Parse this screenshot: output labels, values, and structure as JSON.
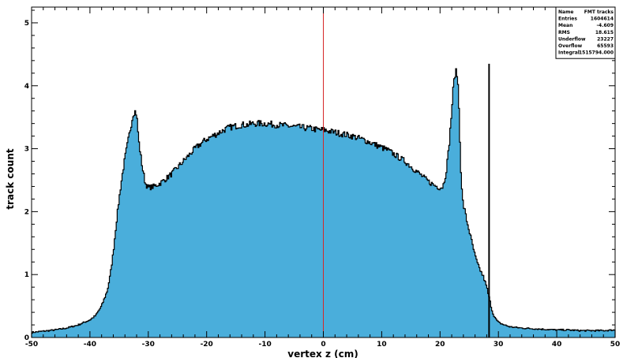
{
  "chart_data": {
    "type": "area",
    "xlabel": "vertex z (cm)",
    "ylabel": "track count",
    "xlim": [
      -50,
      50
    ],
    "ylim": [
      0,
      5.25
    ],
    "xticks": [
      "-50",
      "-40",
      "-30",
      "-20",
      "-10",
      "0",
      "10",
      "20",
      "30",
      "40",
      "50"
    ],
    "yticks": [
      "0",
      "1",
      "2",
      "3",
      "4",
      "5"
    ],
    "grid": false,
    "legend": "stats box top-right",
    "fill_color": "#4aaedb",
    "line_color": "#000000",
    "marker_color": "#d62728",
    "marker_x": 0,
    "spike": {
      "x": 28.4,
      "y": 4.35
    },
    "series": [
      {
        "x": [
          -50,
          -48,
          -46,
          -44,
          -42,
          -40,
          -39,
          -38,
          -37,
          -36.5,
          -36,
          -35.5,
          -35,
          -34.5,
          -34,
          -33.5,
          -33,
          -32.6,
          -32.3,
          -32,
          -31.6,
          -31,
          -30.5,
          -30,
          -29,
          -28,
          -27,
          -26,
          -25,
          -24,
          -23,
          -22,
          -21,
          -20,
          -19,
          -18,
          -17,
          -16,
          -15,
          -14,
          -13,
          -12,
          -11,
          -10,
          -9,
          -8,
          -7,
          -6,
          -5,
          -4,
          -3,
          -2,
          -1,
          0,
          1,
          2,
          3,
          4,
          5,
          6,
          7,
          8,
          9,
          10,
          11,
          12,
          13,
          14,
          15,
          16,
          17,
          18,
          19,
          20,
          20.5,
          21,
          21.5,
          22,
          22.3,
          22.6,
          22.8,
          23,
          23.2,
          23.4,
          23.6,
          23.8,
          24,
          24.3,
          24.6,
          25,
          25.5,
          26,
          26.5,
          27,
          27.5,
          28,
          28.5,
          29,
          29.5,
          30,
          31,
          32,
          34,
          36,
          38,
          40,
          42,
          44,
          46,
          48,
          50
        ],
        "values": [
          0.08,
          0.1,
          0.12,
          0.15,
          0.2,
          0.28,
          0.35,
          0.5,
          0.75,
          1.0,
          1.35,
          1.8,
          2.2,
          2.55,
          2.85,
          3.1,
          3.35,
          3.55,
          3.6,
          3.55,
          3.1,
          2.7,
          2.45,
          2.38,
          2.4,
          2.45,
          2.52,
          2.6,
          2.7,
          2.8,
          2.9,
          3.0,
          3.08,
          3.15,
          3.2,
          3.25,
          3.3,
          3.34,
          3.36,
          3.38,
          3.38,
          3.4,
          3.4,
          3.4,
          3.39,
          3.38,
          3.37,
          3.36,
          3.35,
          3.34,
          3.33,
          3.32,
          3.3,
          3.3,
          3.28,
          3.26,
          3.24,
          3.22,
          3.2,
          3.17,
          3.14,
          3.1,
          3.06,
          3.02,
          2.98,
          2.92,
          2.86,
          2.8,
          2.72,
          2.64,
          2.56,
          2.48,
          2.42,
          2.38,
          2.4,
          2.6,
          3.0,
          3.6,
          4.0,
          4.2,
          4.22,
          4.15,
          3.8,
          3.2,
          2.6,
          2.25,
          2.1,
          2.0,
          1.85,
          1.7,
          1.5,
          1.3,
          1.15,
          1.05,
          0.95,
          0.8,
          0.6,
          0.4,
          0.3,
          0.24,
          0.2,
          0.17,
          0.15,
          0.14,
          0.13,
          0.12,
          0.12,
          0.11,
          0.11,
          0.11,
          0.12
        ]
      }
    ],
    "stats": {
      "rows": [
        {
          "label": "Name",
          "value": "FMT tracks"
        },
        {
          "label": "Entries",
          "value": "1604614"
        },
        {
          "label": "Mean",
          "value": "-4.609"
        },
        {
          "label": "RMS",
          "value": "18.615"
        },
        {
          "label": "Underflow",
          "value": "23227"
        },
        {
          "label": "Overflow",
          "value": "65593"
        },
        {
          "label": "Integral",
          "value": "1515794.000"
        }
      ]
    }
  }
}
